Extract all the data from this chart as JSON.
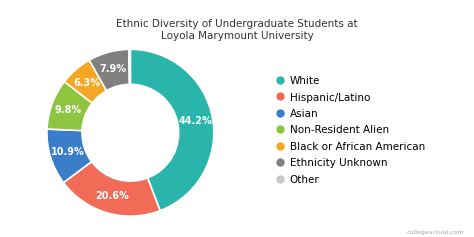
{
  "title": "Ethnic Diversity of Undergraduate Students at\nLoyola Marymount University",
  "labels": [
    "White",
    "Hispanic/Latino",
    "Asian",
    "Non-Resident Alien",
    "Black or African American",
    "Ethnicity Unknown",
    "Other"
  ],
  "values": [
    44.2,
    20.6,
    10.9,
    9.8,
    6.3,
    7.9,
    0.3
  ],
  "colors": [
    "#2ab5ac",
    "#f26b57",
    "#3a7dc9",
    "#8dc540",
    "#f5a623",
    "#808080",
    "#c8c8c8"
  ],
  "pct_labels": [
    "44.2%",
    "20.6%",
    "10.9%",
    "9.8%",
    "6.3%",
    "7.9%",
    ""
  ],
  "background_color": "#ffffff",
  "title_fontsize": 7.5,
  "legend_fontsize": 7.5,
  "wedge_label_fontsize": 7,
  "donut_width": 0.42
}
